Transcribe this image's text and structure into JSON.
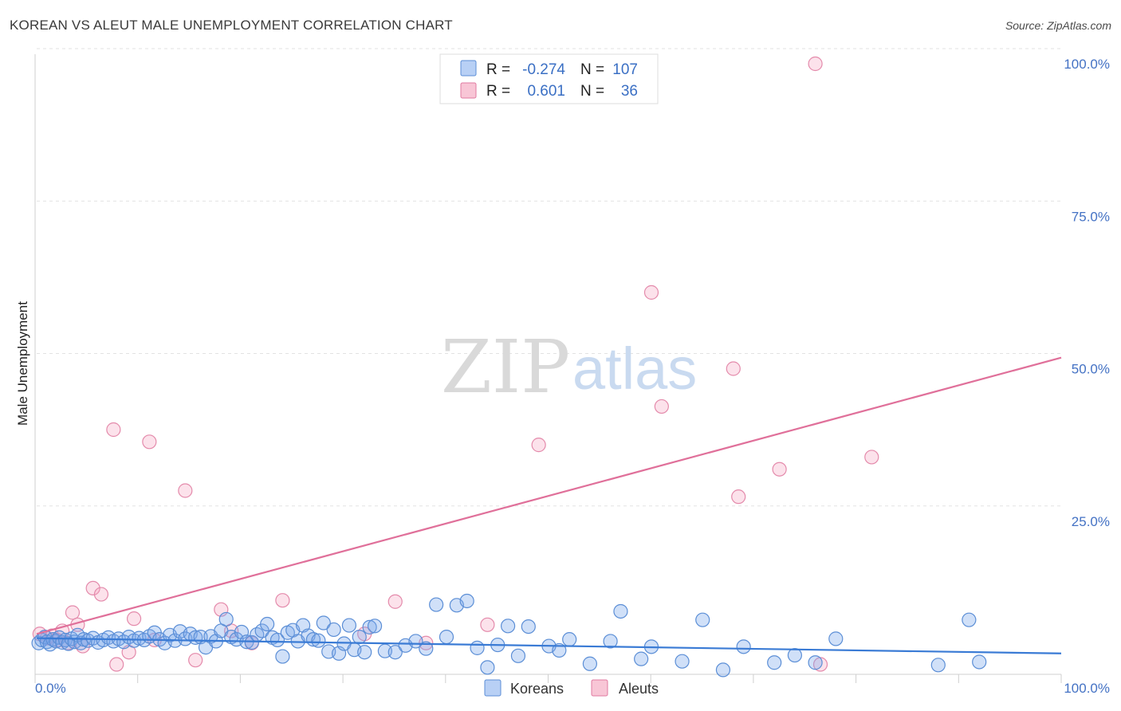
{
  "header": {
    "title": "KOREAN VS ALEUT MALE UNEMPLOYMENT CORRELATION CHART",
    "source": "Source: ZipAtlas.com"
  },
  "watermark": {
    "zip": "ZIP",
    "atlas": "atlas"
  },
  "legend": {
    "rows": [
      {
        "r_label": "R =",
        "r_value": "-0.274",
        "n_label": "N =",
        "n_value": "107",
        "fill": "#b8d0f5",
        "stroke": "#5b8ed6"
      },
      {
        "r_label": "R =",
        "r_value": "0.601",
        "n_label": "N =",
        "n_value": "36",
        "fill": "#f8c6d6",
        "stroke": "#e07aa0"
      }
    ]
  },
  "bottom_legend": {
    "items": [
      "Koreans",
      "Aleuts"
    ]
  },
  "chart_data": {
    "type": "scatter",
    "title": "KOREAN VS ALEUT MALE UNEMPLOYMENT CORRELATION CHART",
    "xlabel": "",
    "ylabel": "Male Unemployment",
    "xlim": [
      0,
      100
    ],
    "ylim": [
      0,
      100
    ],
    "x_tick_labels": [
      "0.0%",
      "100.0%"
    ],
    "y_ticks": [
      25,
      50,
      75,
      100
    ],
    "y_tick_labels": [
      "25.0%",
      "50.0%",
      "75.0%",
      "100.0%"
    ],
    "grid": true,
    "colors": {
      "koreans": "#3a7bd5",
      "aleuts": "#e0709a"
    },
    "series": [
      {
        "name": "Koreans",
        "r": -0.274,
        "n": 107,
        "trend": {
          "x": [
            0,
            100
          ],
          "y": [
            5.8,
            3.3
          ]
        },
        "points": [
          {
            "x": 0.2,
            "y": 5.0
          },
          {
            "x": 0.5,
            "y": 5.5
          },
          {
            "x": 0.8,
            "y": 6.0
          },
          {
            "x": 1.0,
            "y": 5.2
          },
          {
            "x": 1.3,
            "y": 4.8
          },
          {
            "x": 1.6,
            "y": 5.6
          },
          {
            "x": 1.9,
            "y": 5.3
          },
          {
            "x": 2.2,
            "y": 5.9
          },
          {
            "x": 2.5,
            "y": 5.1
          },
          {
            "x": 2.8,
            "y": 5.5
          },
          {
            "x": 3.1,
            "y": 4.9
          },
          {
            "x": 3.4,
            "y": 5.7
          },
          {
            "x": 3.7,
            "y": 5.2
          },
          {
            "x": 4.0,
            "y": 6.3
          },
          {
            "x": 4.3,
            "y": 5.0
          },
          {
            "x": 4.6,
            "y": 5.6
          },
          {
            "x": 5.0,
            "y": 5.4
          },
          {
            "x": 5.5,
            "y": 5.8
          },
          {
            "x": 6.0,
            "y": 5.1
          },
          {
            "x": 6.5,
            "y": 5.5
          },
          {
            "x": 7.0,
            "y": 5.9
          },
          {
            "x": 7.5,
            "y": 5.3
          },
          {
            "x": 8.0,
            "y": 5.7
          },
          {
            "x": 8.5,
            "y": 5.2
          },
          {
            "x": 9.0,
            "y": 6.0
          },
          {
            "x": 9.5,
            "y": 5.4
          },
          {
            "x": 10.0,
            "y": 5.8
          },
          {
            "x": 10.5,
            "y": 5.5
          },
          {
            "x": 11.0,
            "y": 6.1
          },
          {
            "x": 11.5,
            "y": 6.7
          },
          {
            "x": 12.0,
            "y": 5.6
          },
          {
            "x": 12.5,
            "y": 5.0
          },
          {
            "x": 13.0,
            "y": 6.3
          },
          {
            "x": 13.5,
            "y": 5.4
          },
          {
            "x": 14.0,
            "y": 6.9
          },
          {
            "x": 14.5,
            "y": 5.7
          },
          {
            "x": 15.0,
            "y": 6.5
          },
          {
            "x": 15.5,
            "y": 5.9
          },
          {
            "x": 16.0,
            "y": 6.0
          },
          {
            "x": 16.5,
            "y": 4.3
          },
          {
            "x": 17.0,
            "y": 6.1
          },
          {
            "x": 17.5,
            "y": 5.3
          },
          {
            "x": 18.0,
            "y": 7.0
          },
          {
            "x": 18.5,
            "y": 8.9
          },
          {
            "x": 19.0,
            "y": 6.0
          },
          {
            "x": 19.5,
            "y": 5.6
          },
          {
            "x": 20.0,
            "y": 6.8
          },
          {
            "x": 20.5,
            "y": 5.2
          },
          {
            "x": 21.0,
            "y": 5.1
          },
          {
            "x": 21.5,
            "y": 6.4
          },
          {
            "x": 22.0,
            "y": 7.0
          },
          {
            "x": 22.5,
            "y": 8.1
          },
          {
            "x": 23.0,
            "y": 5.9
          },
          {
            "x": 23.5,
            "y": 5.5
          },
          {
            "x": 24.0,
            "y": 2.8
          },
          {
            "x": 24.5,
            "y": 6.7
          },
          {
            "x": 25.0,
            "y": 7.1
          },
          {
            "x": 25.5,
            "y": 5.3
          },
          {
            "x": 26.0,
            "y": 7.9
          },
          {
            "x": 26.5,
            "y": 6.2
          },
          {
            "x": 27.0,
            "y": 5.6
          },
          {
            "x": 27.5,
            "y": 5.4
          },
          {
            "x": 28.0,
            "y": 8.3
          },
          {
            "x": 28.5,
            "y": 3.6
          },
          {
            "x": 29.0,
            "y": 7.2
          },
          {
            "x": 29.5,
            "y": 3.3
          },
          {
            "x": 30.0,
            "y": 4.9
          },
          {
            "x": 30.5,
            "y": 7.9
          },
          {
            "x": 31.0,
            "y": 3.9
          },
          {
            "x": 31.5,
            "y": 6.0
          },
          {
            "x": 32.0,
            "y": 3.5
          },
          {
            "x": 32.5,
            "y": 7.6
          },
          {
            "x": 33.0,
            "y": 7.8
          },
          {
            "x": 34.0,
            "y": 3.7
          },
          {
            "x": 35.0,
            "y": 3.5
          },
          {
            "x": 36.0,
            "y": 4.6
          },
          {
            "x": 37.0,
            "y": 5.3
          },
          {
            "x": 38.0,
            "y": 4.1
          },
          {
            "x": 39.0,
            "y": 11.3
          },
          {
            "x": 40.0,
            "y": 6.0
          },
          {
            "x": 41.0,
            "y": 11.2
          },
          {
            "x": 42.0,
            "y": 11.9
          },
          {
            "x": 43.0,
            "y": 4.2
          },
          {
            "x": 44.0,
            "y": 1.0
          },
          {
            "x": 45.0,
            "y": 4.7
          },
          {
            "x": 46.0,
            "y": 7.8
          },
          {
            "x": 47.0,
            "y": 2.9
          },
          {
            "x": 48.0,
            "y": 7.7
          },
          {
            "x": 50.0,
            "y": 4.5
          },
          {
            "x": 51.0,
            "y": 3.8
          },
          {
            "x": 52.0,
            "y": 5.6
          },
          {
            "x": 54.0,
            "y": 1.6
          },
          {
            "x": 56.0,
            "y": 5.3
          },
          {
            "x": 57.0,
            "y": 10.2
          },
          {
            "x": 59.0,
            "y": 2.4
          },
          {
            "x": 60.0,
            "y": 4.4
          },
          {
            "x": 63.0,
            "y": 2.0
          },
          {
            "x": 65.0,
            "y": 8.8
          },
          {
            "x": 67.0,
            "y": 0.6
          },
          {
            "x": 69.0,
            "y": 4.4
          },
          {
            "x": 72.0,
            "y": 1.8
          },
          {
            "x": 74.0,
            "y": 3.0
          },
          {
            "x": 76.0,
            "y": 1.8
          },
          {
            "x": 78.0,
            "y": 5.7
          },
          {
            "x": 88.0,
            "y": 1.4
          },
          {
            "x": 91.0,
            "y": 8.8
          },
          {
            "x": 92.0,
            "y": 1.9
          }
        ]
      },
      {
        "name": "Aleuts",
        "r": 0.601,
        "n": 36,
        "trend": {
          "x": [
            0,
            100
          ],
          "y": [
            6.5,
            51.8
          ]
        },
        "points": [
          {
            "x": 0.3,
            "y": 6.5
          },
          {
            "x": 1.0,
            "y": 5.8
          },
          {
            "x": 1.5,
            "y": 6.2
          },
          {
            "x": 2.0,
            "y": 5.5
          },
          {
            "x": 2.5,
            "y": 7.0
          },
          {
            "x": 3.0,
            "y": 5.0
          },
          {
            "x": 3.5,
            "y": 10.0
          },
          {
            "x": 4.0,
            "y": 8.0
          },
          {
            "x": 4.5,
            "y": 4.5
          },
          {
            "x": 5.5,
            "y": 14.0
          },
          {
            "x": 6.3,
            "y": 13.0
          },
          {
            "x": 7.5,
            "y": 40.0
          },
          {
            "x": 7.8,
            "y": 1.5
          },
          {
            "x": 9.0,
            "y": 3.5
          },
          {
            "x": 9.5,
            "y": 9.0
          },
          {
            "x": 11.0,
            "y": 38.0
          },
          {
            "x": 11.5,
            "y": 5.5
          },
          {
            "x": 14.5,
            "y": 30.0
          },
          {
            "x": 15.5,
            "y": 2.2
          },
          {
            "x": 18.0,
            "y": 10.5
          },
          {
            "x": 19.0,
            "y": 7.0
          },
          {
            "x": 21.0,
            "y": 5.0
          },
          {
            "x": 24.0,
            "y": 12.0
          },
          {
            "x": 32.0,
            "y": 6.5
          },
          {
            "x": 35.0,
            "y": 11.8
          },
          {
            "x": 38.0,
            "y": 5.0
          },
          {
            "x": 44.0,
            "y": 8.0
          },
          {
            "x": 49.0,
            "y": 37.5
          },
          {
            "x": 60.0,
            "y": 62.5
          },
          {
            "x": 61.0,
            "y": 43.8
          },
          {
            "x": 68.0,
            "y": 50.0
          },
          {
            "x": 68.5,
            "y": 29.0
          },
          {
            "x": 72.5,
            "y": 33.5
          },
          {
            "x": 76.0,
            "y": 100.0
          },
          {
            "x": 76.5,
            "y": 1.5
          },
          {
            "x": 81.5,
            "y": 35.5
          }
        ]
      }
    ]
  }
}
